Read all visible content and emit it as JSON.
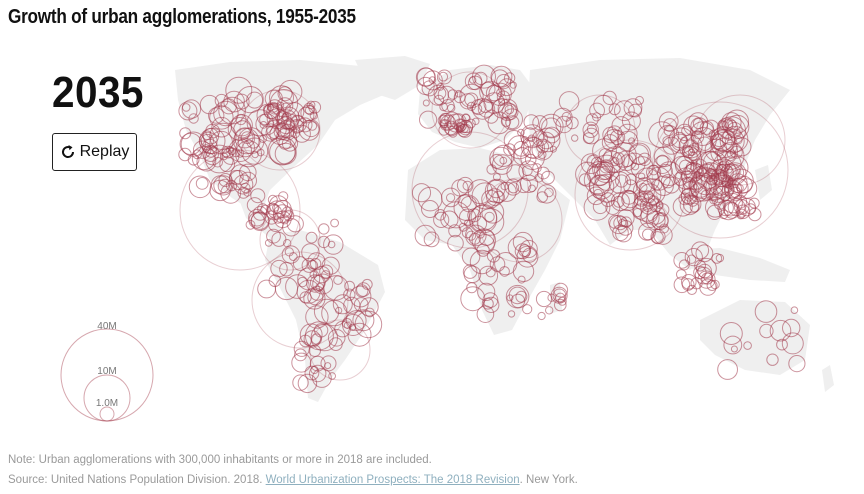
{
  "title": "Growth of urban agglomerations, 1955-2035",
  "year": "2035",
  "replay_button": {
    "label": "Replay",
    "icon": "replay-icon"
  },
  "legend": {
    "labels": [
      "40M",
      "10M",
      "1.0M"
    ],
    "values_millions": [
      40,
      10,
      1.0
    ]
  },
  "note": "Note: Urban agglomerations with 300,000 inhabitants or more in 2018 are included.",
  "source": {
    "prefix": "Source: United Nations Population Division. 2018.",
    "link_text": "World Urbanization Prospects: The 2018 Revision",
    "suffix": ". New York."
  },
  "colors": {
    "circle_stroke": "#a33b4c",
    "land": "#efefef",
    "text_muted": "#9a9a9a",
    "link": "#8fb0bf"
  }
}
